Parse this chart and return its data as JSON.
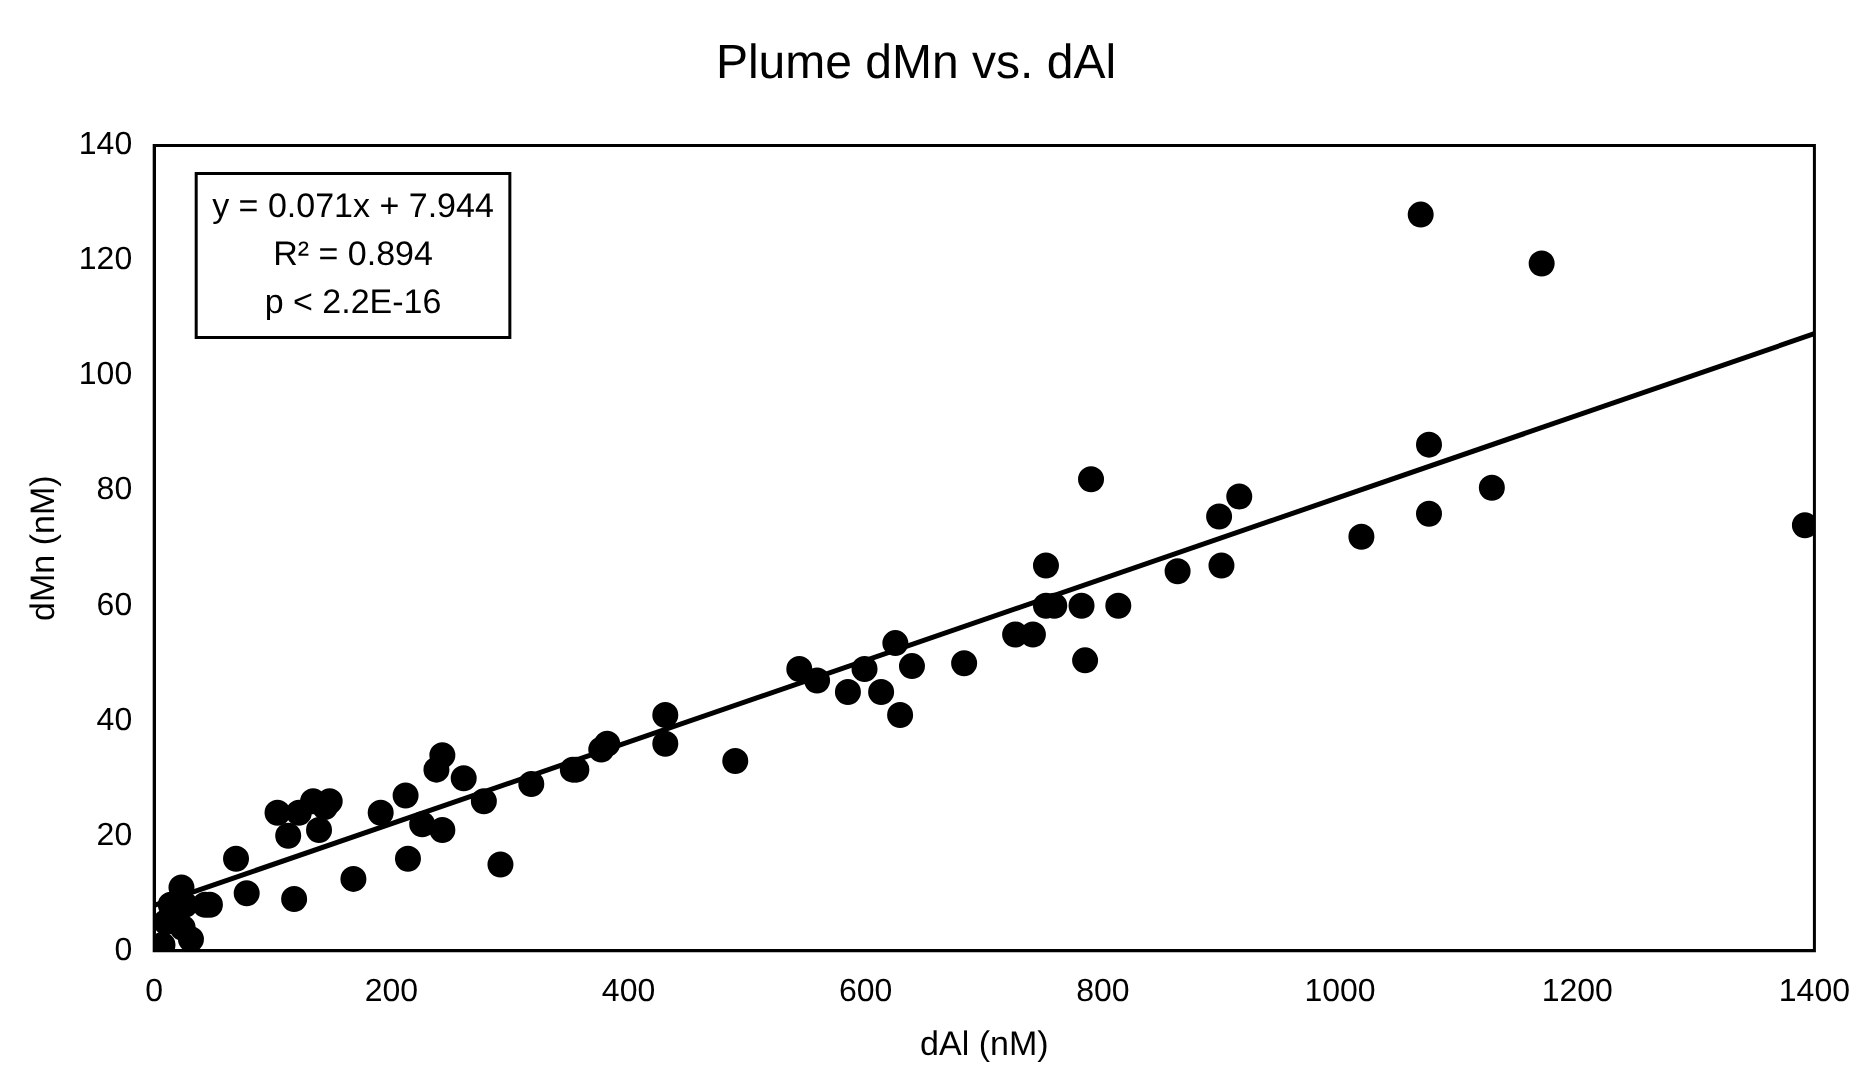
{
  "chart_data": {
    "type": "scatter",
    "title": "Plume dMn vs. dAl",
    "xlabel": "dAl (nM)",
    "ylabel": "dMn (nM)",
    "xlim": [
      0,
      1400
    ],
    "xticks": [
      0,
      200,
      400,
      600,
      800,
      1000,
      1200,
      1400
    ],
    "ylim": [
      0,
      140
    ],
    "yticks": [
      0,
      20,
      40,
      60,
      80,
      100,
      120,
      140
    ],
    "grid": false,
    "legend": false,
    "marker": "circle",
    "annotations": [
      "y = 0.071x + 7.944",
      "R² = 0.894",
      "p < 2.2E-16"
    ],
    "series": [
      {
        "color": "#000000",
        "x": [
          7,
          10,
          14,
          26,
          24,
          31,
          43,
          23,
          47,
          69,
          78,
          118,
          168,
          214,
          292,
          104,
          113,
          122,
          134,
          139,
          144,
          148,
          191,
          212,
          226,
          238,
          243,
          243,
          261,
          278,
          318,
          353,
          356,
          377,
          382,
          431,
          431,
          490,
          544,
          559,
          585,
          599,
          613,
          625,
          629,
          639,
          683,
          726,
          741,
          752,
          752,
          759,
          782,
          785,
          790,
          813,
          863,
          898,
          900,
          915,
          1018,
          1075,
          1075,
          1128,
          1068,
          1170,
          1392
        ],
        "values": [
          1,
          5,
          8,
          8,
          4,
          2,
          8,
          11,
          8,
          16,
          10,
          9,
          12.5,
          16,
          15,
          24,
          20,
          24,
          26,
          21,
          25,
          26,
          24,
          27,
          22,
          31.5,
          34,
          21,
          30,
          26,
          29,
          31.5,
          31.5,
          35,
          36,
          41,
          36,
          33,
          49,
          47,
          45,
          49,
          45,
          53.5,
          41,
          49.5,
          50,
          55,
          55,
          60,
          67,
          60,
          60,
          50.5,
          82,
          60,
          66,
          75.5,
          67,
          79,
          72,
          76,
          88,
          80.5,
          128,
          119.5,
          74
        ]
      },
      {
        "type": "line",
        "color": "#000000",
        "marker": "none",
        "x": [
          0,
          1400
        ],
        "values": [
          7.9,
          107.3
        ]
      }
    ]
  }
}
